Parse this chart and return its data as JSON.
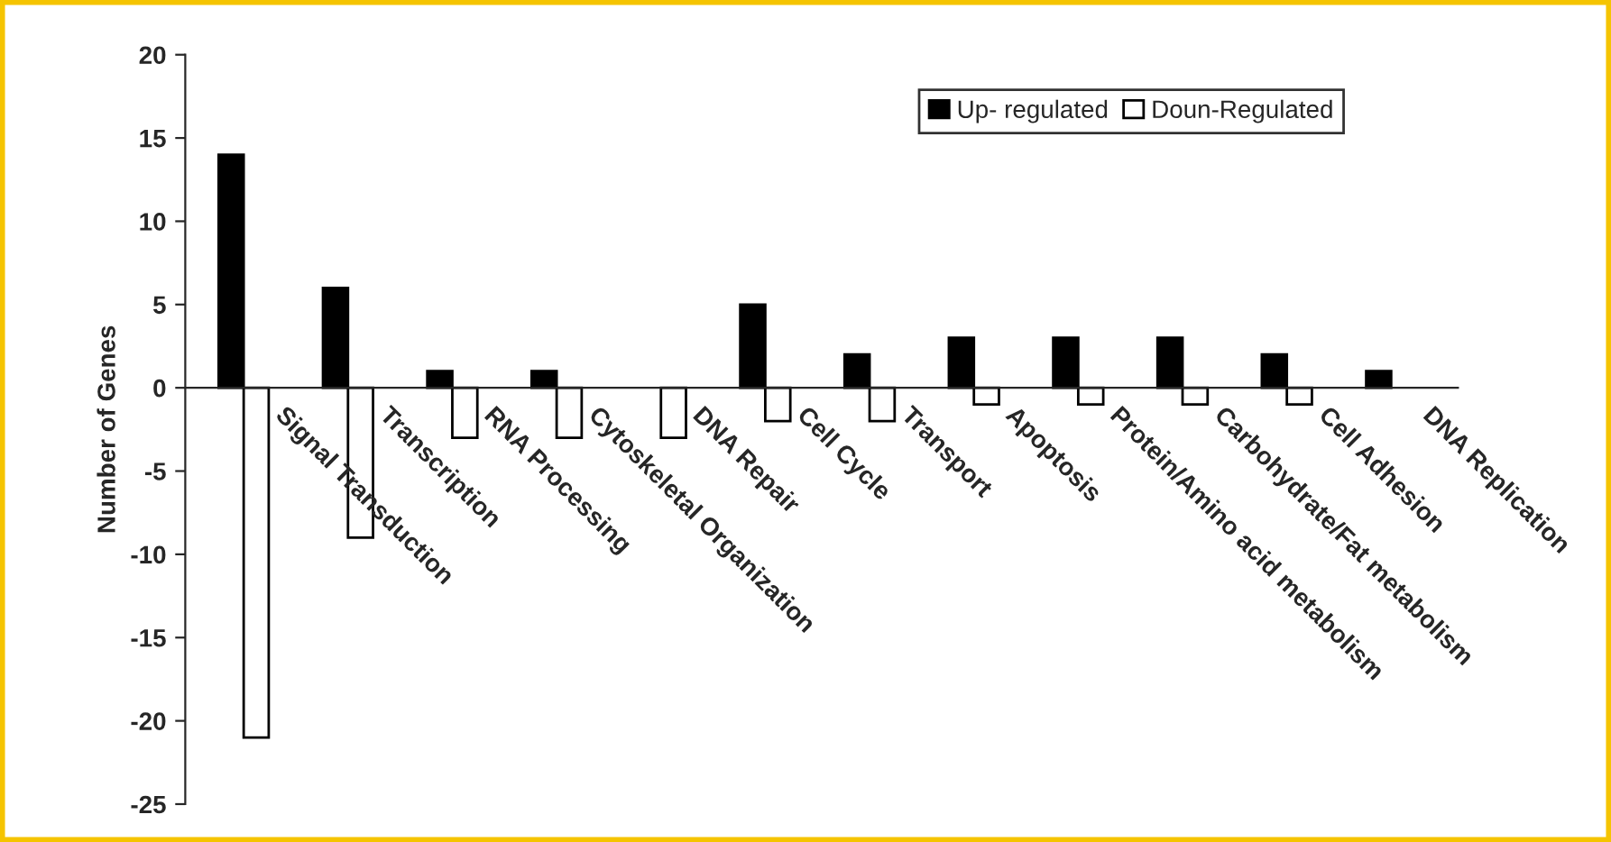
{
  "chart_data": {
    "type": "bar",
    "ylabel": "Number of Genes",
    "categories": [
      "Signal Transduction",
      "Transcription",
      "RNA Processing",
      "Cytoskeletal Organization",
      "DNA Repair",
      "Cell Cycle",
      "Transport",
      "Apoptosis",
      "Protein/Amino acid metabolism",
      "Carbohydrate/Fat metabolism",
      "Cell Adhesion",
      "DNA Replication"
    ],
    "series": [
      {
        "name": "Up- regulated",
        "color": "#000000",
        "values": [
          14,
          6,
          1,
          1,
          null,
          5,
          2,
          3,
          3,
          3,
          2,
          1
        ]
      },
      {
        "name": "Doun-Regulated",
        "color": "#ffffff",
        "values": [
          -21,
          -9,
          -3,
          -3,
          -3,
          -2,
          -2,
          -1,
          -1,
          -1,
          -1,
          null
        ]
      }
    ],
    "ylim": [
      -25,
      20
    ],
    "yticks": [
      -25,
      -20,
      -15,
      -10,
      -5,
      0,
      5,
      10,
      15,
      20
    ],
    "grid": false,
    "legend": "top right"
  }
}
